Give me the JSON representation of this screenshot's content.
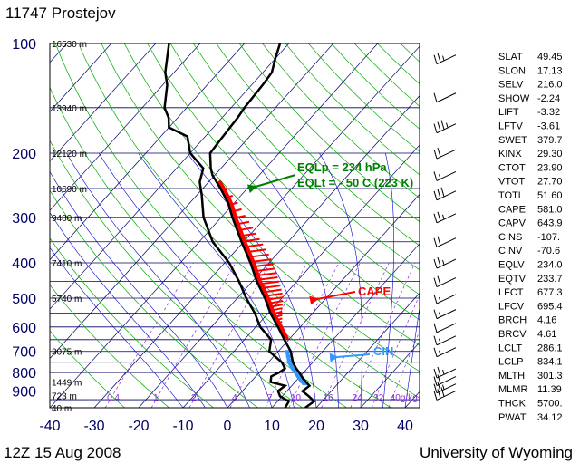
{
  "station": "11747  Prostejov",
  "datetime": "12Z 15 Aug 2008",
  "source": "University of Wyoming",
  "chart_data": {
    "type": "line",
    "title": "11747  Prostejov",
    "pressure_ticks": [
      100,
      200,
      300,
      400,
      500,
      600,
      700,
      800,
      900
    ],
    "x_ticks": [
      -40,
      -30,
      -20,
      -10,
      0,
      10,
      20,
      30,
      40
    ],
    "xlim": [
      -40,
      45
    ],
    "ylim": [
      1000,
      100
    ],
    "height_labels": [
      {
        "p": 100,
        "text": "16530 m"
      },
      {
        "p": 150,
        "text": "13940 m"
      },
      {
        "p": 200,
        "text": "12120 m"
      },
      {
        "p": 250,
        "text": "10690 m"
      },
      {
        "p": 300,
        "text": "9480 m"
      },
      {
        "p": 400,
        "text": "7410 m"
      },
      {
        "p": 500,
        "text": "5740 m"
      },
      {
        "p": 700,
        "text": "3075 m"
      },
      {
        "p": 850,
        "text": "1449 m"
      },
      {
        "p": 925,
        "text": "723 m"
      },
      {
        "p": 1000,
        "text": "40 m"
      }
    ],
    "mixing_ratio_labels": [
      "0.4",
      "1",
      "2",
      "4",
      "7",
      "10",
      "16",
      "24",
      "32",
      "40g/kg"
    ],
    "mixing_ratio_values": [
      0.4,
      1,
      2,
      4,
      7,
      10,
      16,
      24,
      32,
      40
    ],
    "series": [
      {
        "name": "",
        "role": "temperature",
        "color": "#000000",
        "points": [
          [
            1000,
            17.5
          ],
          [
            960,
            18.2
          ],
          [
            930,
            16.0
          ],
          [
            900,
            13.5
          ],
          [
            870,
            14.0
          ],
          [
            850,
            12.5
          ],
          [
            830,
            11.0
          ],
          [
            800,
            9.0
          ],
          [
            780,
            7.5
          ],
          [
            750,
            5.5
          ],
          [
            700,
            2.8
          ],
          [
            650,
            -1.0
          ],
          [
            600,
            -5.0
          ],
          [
            550,
            -9.5
          ],
          [
            500,
            -13.8
          ],
          [
            450,
            -19.0
          ],
          [
            400,
            -24.2
          ],
          [
            350,
            -30.5
          ],
          [
            300,
            -37.5
          ],
          [
            275,
            -41.2
          ],
          [
            250,
            -46.0
          ],
          [
            230,
            -50.5
          ],
          [
            220,
            -52.3
          ],
          [
            200,
            -55.5
          ],
          [
            180,
            -56.0
          ],
          [
            160,
            -56.5
          ],
          [
            150,
            -57.0
          ],
          [
            130,
            -57.5
          ],
          [
            120,
            -58.0
          ],
          [
            110,
            -60.0
          ],
          [
            100,
            -62.0
          ]
        ]
      },
      {
        "name": "",
        "role": "dewpoint",
        "color": "#000000",
        "points": [
          [
            1000,
            13.0
          ],
          [
            960,
            12.5
          ],
          [
            930,
            9.5
          ],
          [
            900,
            8.0
          ],
          [
            870,
            8.5
          ],
          [
            850,
            4.5
          ],
          [
            820,
            3.5
          ],
          [
            800,
            4.5
          ],
          [
            780,
            5.0
          ],
          [
            750,
            3.0
          ],
          [
            700,
            -2.0
          ],
          [
            650,
            -4.0
          ],
          [
            600,
            -9.0
          ],
          [
            550,
            -13.0
          ],
          [
            500,
            -18.0
          ],
          [
            450,
            -23.0
          ],
          [
            400,
            -29.0
          ],
          [
            350,
            -37.0
          ],
          [
            300,
            -44.0
          ],
          [
            260,
            -49.0
          ],
          [
            240,
            -52.0
          ],
          [
            220,
            -54.0
          ],
          [
            200,
            -60.0
          ],
          [
            180,
            -64.0
          ],
          [
            170,
            -70.0
          ],
          [
            160,
            -72.0
          ],
          [
            150,
            -75.0
          ],
          [
            130,
            -79.0
          ],
          [
            120,
            -82.0
          ],
          [
            100,
            -87.0
          ]
        ]
      }
    ],
    "cape": {
      "label": "CAPE",
      "color": "#ff0000",
      "p_top": 234,
      "p_bottom": 650
    },
    "cin": {
      "label": "CIN",
      "color": "#3399ff",
      "p_top": 700,
      "p_bottom": 860
    },
    "annotations": [
      {
        "text": "EQLp = 234 hPa",
        "color": "#008000"
      },
      {
        "text": "EQLt = - 50 C (223 K)",
        "color": "#008000"
      }
    ],
    "wind_barbs": [
      {
        "p": 110,
        "barbs": [
          10,
          10,
          5
        ]
      },
      {
        "p": 140,
        "barbs": [
          10
        ]
      },
      {
        "p": 170,
        "barbs": [
          10,
          10,
          10,
          5
        ]
      },
      {
        "p": 200,
        "barbs": [
          10,
          10
        ]
      },
      {
        "p": 230,
        "barbs": [
          10,
          5
        ]
      },
      {
        "p": 260,
        "barbs": [
          10,
          10,
          10
        ]
      },
      {
        "p": 300,
        "barbs": [
          10,
          10,
          5
        ]
      },
      {
        "p": 350,
        "barbs": [
          10,
          10
        ]
      },
      {
        "p": 400,
        "barbs": [
          10,
          10,
          5
        ]
      },
      {
        "p": 450,
        "barbs": [
          10,
          10
        ]
      },
      {
        "p": 500,
        "barbs": [
          10,
          5
        ]
      },
      {
        "p": 550,
        "barbs": [
          10,
          5
        ]
      },
      {
        "p": 600,
        "barbs": [
          10
        ]
      },
      {
        "p": 650,
        "barbs": [
          10,
          5
        ]
      },
      {
        "p": 700,
        "barbs": [
          10,
          5
        ]
      },
      {
        "p": 800,
        "barbs": [
          10,
          10,
          5
        ]
      },
      {
        "p": 840,
        "barbs": [
          10,
          10
        ]
      },
      {
        "p": 880,
        "barbs": [
          10,
          10,
          5
        ]
      },
      {
        "p": 920,
        "barbs": [
          10,
          10,
          10
        ]
      }
    ],
    "indices": [
      {
        "name": "SLAT",
        "value": "49.45"
      },
      {
        "name": "SLON",
        "value": "17.13"
      },
      {
        "name": "SELV",
        "value": "216.0"
      },
      {
        "name": "SHOW",
        "value": "-2.24"
      },
      {
        "name": "LIFT",
        "value": "-3.32"
      },
      {
        "name": "LFTV",
        "value": "-3.61"
      },
      {
        "name": "SWET",
        "value": "379.7"
      },
      {
        "name": "KINX",
        "value": "29.30"
      },
      {
        "name": "CTOT",
        "value": "23.90"
      },
      {
        "name": "VTOT",
        "value": "27.70"
      },
      {
        "name": "TOTL",
        "value": "51.60"
      },
      {
        "name": "CAPE",
        "value": "581.0"
      },
      {
        "name": "CAPV",
        "value": "643.9"
      },
      {
        "name": "CINS",
        "value": "-107."
      },
      {
        "name": "CINV",
        "value": "-70.6"
      },
      {
        "name": "EQLV",
        "value": "234.0"
      },
      {
        "name": "EQTV",
        "value": "233.7"
      },
      {
        "name": "LFCT",
        "value": "677.3"
      },
      {
        "name": "LFCV",
        "value": "695.4"
      },
      {
        "name": "BRCH",
        "value": "4.16"
      },
      {
        "name": "BRCV",
        "value": "4.61"
      },
      {
        "name": "LCLT",
        "value": "286.1"
      },
      {
        "name": "LCLP",
        "value": "834.1"
      },
      {
        "name": "MLTH",
        "value": "301.3"
      },
      {
        "name": "MLMR",
        "value": "11.39"
      },
      {
        "name": "THCK",
        "value": "5700."
      },
      {
        "name": "PWAT",
        "value": "34.12"
      }
    ],
    "colors": {
      "isobar": "#000066",
      "isotherm": "#000066",
      "dry_adiabat": "#00aa00",
      "moist_adiabat": "#0000cc",
      "mixing_ratio": "#8a2be2"
    }
  }
}
